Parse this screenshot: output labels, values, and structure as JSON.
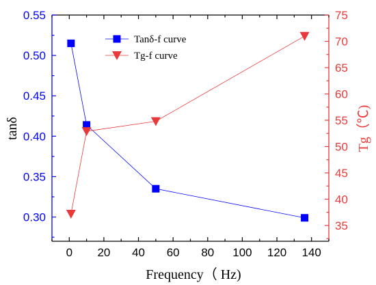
{
  "chart_data": {
    "type": "line",
    "title": "",
    "xlabel": "Frequency（ Hz)",
    "ylabel_left": "tanδ",
    "ylabel_right": "Tg（℃)",
    "xlim": [
      -10,
      150
    ],
    "ylim_left": [
      0.27,
      0.55
    ],
    "ylim_right": [
      32,
      75
    ],
    "x_ticks": [
      0,
      20,
      40,
      60,
      80,
      100,
      120,
      140
    ],
    "y_left_ticks": [
      0.3,
      0.35,
      0.4,
      0.45,
      0.5,
      0.55
    ],
    "y_right_ticks": [
      35,
      40,
      45,
      50,
      55,
      60,
      65,
      70,
      75
    ],
    "grid": false,
    "legend_position": "top-center",
    "series": [
      {
        "name": "Tanδ-f curve",
        "axis": "left",
        "marker": "square",
        "color": "#0000FF",
        "x": [
          1,
          10,
          50,
          136
        ],
        "y": [
          0.515,
          0.414,
          0.335,
          0.299
        ]
      },
      {
        "name": "Tg-f curve",
        "axis": "right",
        "marker": "triangle-down",
        "color": "#E83A3A",
        "x": [
          1,
          10,
          50,
          136
        ],
        "y": [
          37.2,
          52.9,
          54.8,
          71.0
        ]
      }
    ],
    "colors": {
      "axis": "#000000",
      "left_axis": "#0000FF",
      "right_axis": "#E83A3A"
    }
  }
}
